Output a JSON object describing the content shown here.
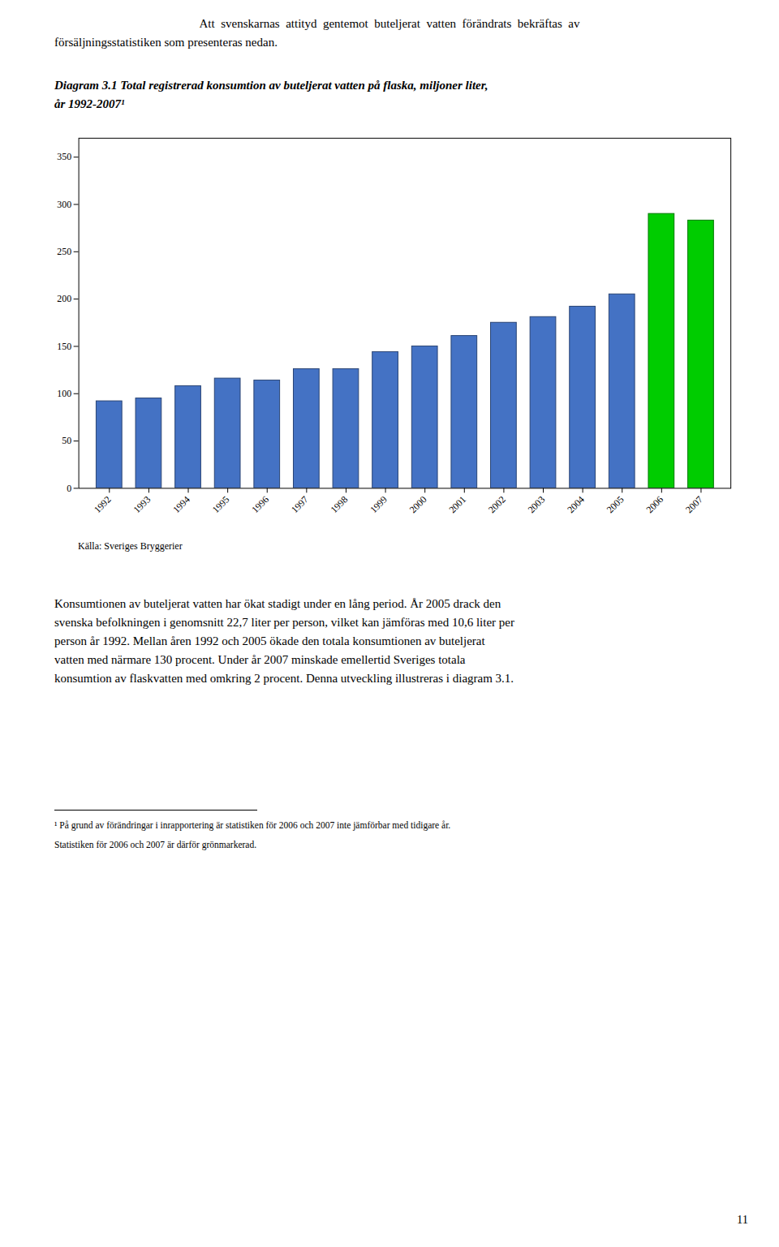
{
  "chart_data": {
    "type": "bar",
    "intro": [
      "Att  svenskarnas  attityd  gentemot  buteljerat  vatten  förändrats  bekräftas  av",
      "försäljningsstatistiken som presenteras nedan."
    ],
    "title": [
      "Diagram 3.1 Total registrerad konsumtion av buteljerat vatten på flaska, miljoner liter,",
      "år 1992-2007¹"
    ],
    "categories": [
      "1992",
      "1993",
      "1994",
      "1995",
      "1996",
      "1997",
      "1998",
      "1999",
      "2000",
      "2001",
      "2002",
      "2003",
      "2004",
      "2005",
      "2006",
      "2007"
    ],
    "values": [
      92,
      95,
      108,
      116,
      114,
      126,
      126,
      144,
      150,
      161,
      175,
      181,
      192,
      205,
      290,
      283
    ],
    "colors": [
      "#4472C4",
      "#4472C4",
      "#4472C4",
      "#4472C4",
      "#4472C4",
      "#4472C4",
      "#4472C4",
      "#4472C4",
      "#4472C4",
      "#4472C4",
      "#4472C4",
      "#4472C4",
      "#4472C4",
      "#4472C4",
      "#00CC00",
      "#00CC00"
    ],
    "ylim": [
      0,
      370
    ],
    "yticks": [
      0,
      50,
      100,
      150,
      200,
      250,
      300,
      350
    ],
    "grid": false,
    "source": "Källa: Sveriges Bryggerier",
    "body": [
      "Konsumtionen av buteljerat vatten har ökat stadigt under en lång period. År 2005 drack den",
      "svenska befolkningen i genomsnitt 22,7 liter per person, vilket kan jämföras med 10,6 liter per",
      "person år 1992. Mellan åren 1992 och 2005 ökade den totala konsumtionen av buteljerat",
      "vatten med närmare 130 procent. Under år 2007 minskade emellertid Sveriges totala",
      "konsumtion av flaskvatten med omkring 2 procent. Denna utveckling illustreras i diagram 3.1."
    ],
    "footnotes": [
      "¹ På grund av förändringar i inrapportering är statistiken för 2006 och 2007 inte jämförbar med tidigare år.",
      "Statistiken för 2006 och 2007 är därför grönmarkerad."
    ],
    "page_number": "11"
  }
}
